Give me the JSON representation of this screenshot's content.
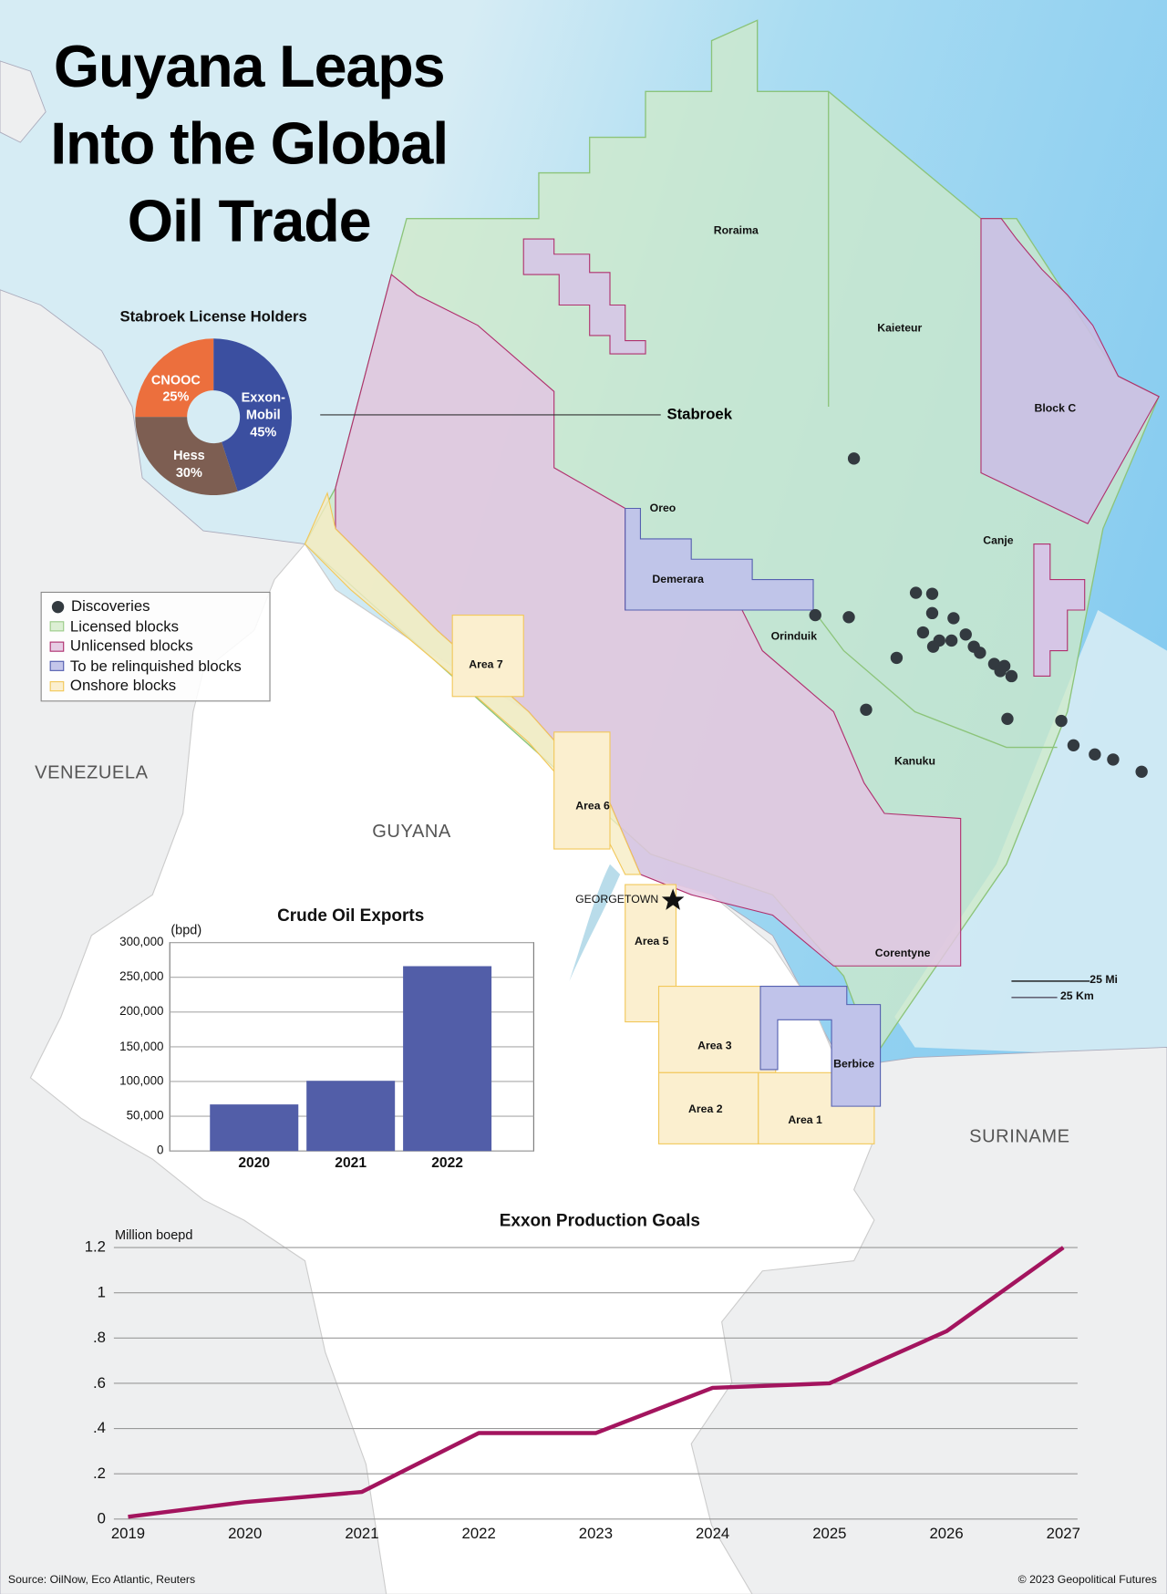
{
  "title_lines": [
    "Guyana Leaps",
    "Into the Global",
    "Oil Trade"
  ],
  "countries": {
    "venezuela": "VENEZUELA",
    "guyana": "GUYANA",
    "suriname": "SURINAME"
  },
  "capital": "GEORGETOWN",
  "stabroek_label": "Stabroek",
  "blocks": {
    "roraima": "Roraima",
    "kaieteur": "Kaieteur",
    "block_c": "Block C",
    "canje": "Canje",
    "oreo": "Oreo",
    "demerara": "Demerara",
    "orinduik": "Orinduik",
    "kanuku": "Kanuku",
    "corentyne": "Corentyne",
    "berbice": "Berbice",
    "area7": "Area 7",
    "area6": "Area 6",
    "area5": "Area 5",
    "area3": "Area 3",
    "area2": "Area 2",
    "area1": "Area 1"
  },
  "legend": [
    {
      "label": "Discoveries",
      "kind": "dot",
      "color": "#333a40"
    },
    {
      "label": "Licensed blocks",
      "kind": "swatch",
      "fill": "#dcefd4",
      "stroke": "#9ccc8a"
    },
    {
      "label": "Unlicensed blocks",
      "kind": "swatch",
      "fill": "#e6cde4",
      "stroke": "#b0306e"
    },
    {
      "label": "To be relinquished blocks",
      "kind": "swatch",
      "fill": "#c4c6ea",
      "stroke": "#5560b0"
    },
    {
      "label": "Onshore blocks",
      "kind": "swatch",
      "fill": "#fbefcf",
      "stroke": "#f2c85a"
    }
  ],
  "scale_bar": {
    "miles": "25 Mi",
    "km": "25 Km"
  },
  "pie": {
    "title": "Stabroek License Holders",
    "slices": [
      {
        "name": "Exxon-Mobil",
        "label1": "Exxon-",
        "label2": "Mobil",
        "pct_label": "45%",
        "value": 45,
        "color": "#3b4fa0"
      },
      {
        "name": "Hess",
        "label1": "Hess",
        "label2": "",
        "pct_label": "30%",
        "value": 30,
        "color": "#7d5e52"
      },
      {
        "name": "CNOOC",
        "label1": "CNOOC",
        "label2": "",
        "pct_label": "25%",
        "value": 25,
        "color": "#ec6f3d"
      }
    ]
  },
  "chart_data": [
    {
      "type": "bar",
      "title": "Crude Oil Exports",
      "ylabel": "(bpd)",
      "xlabel": "",
      "categories": [
        "2020",
        "2021",
        "2022"
      ],
      "values": [
        67000,
        101000,
        266000
      ],
      "ylim": [
        0,
        300000
      ],
      "yticks": [
        "0",
        "50,000",
        "100,000",
        "150,000",
        "200,000",
        "250,000",
        "300,000"
      ],
      "grid": true,
      "color": "#525ea8"
    },
    {
      "type": "line",
      "title": "Exxon Production Goals",
      "ylabel": "Million boepd",
      "xlabel": "",
      "x": [
        "2019",
        "2020",
        "2021",
        "2022",
        "2023",
        "2024",
        "2025",
        "2026",
        "2027"
      ],
      "values": [
        0.01,
        0.075,
        0.12,
        0.38,
        0.38,
        0.58,
        0.6,
        0.83,
        1.2
      ],
      "ylim": [
        0,
        1.2
      ],
      "yticks": [
        "0",
        ".2",
        ".4",
        ".6",
        ".8",
        "1",
        "1.2"
      ],
      "grid": true,
      "color": "#a3145e"
    }
  ],
  "source": "Source: OilNow, Eco Atlantic, Reuters",
  "copyright": "© 2023 Geopolitical Futures"
}
